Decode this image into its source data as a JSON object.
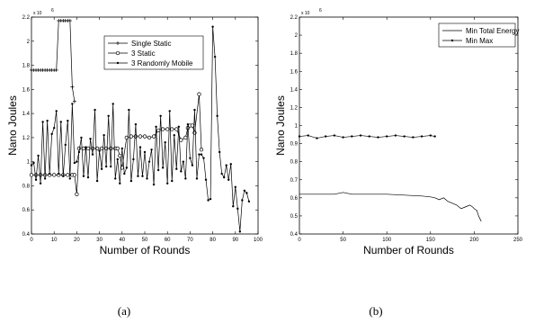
{
  "chart_data": [
    {
      "type": "line",
      "panel_label": "(a)",
      "xlabel": "Number of Rounds",
      "ylabel": "Nano Joules",
      "y_exponent_label": "x 10",
      "y_exponent": "6",
      "xlim": [
        0,
        100
      ],
      "ylim": [
        0.4,
        2.2
      ],
      "xticks": [
        0,
        10,
        20,
        30,
        40,
        50,
        60,
        70,
        80,
        90,
        100
      ],
      "yticks": [
        0.4,
        0.6,
        0.8,
        1,
        1.2,
        1.4,
        1.6,
        1.8,
        2,
        2.2
      ],
      "ytick_labels": [
        "0.4",
        "0.6",
        "0.8",
        "1",
        "1.2",
        "1.4",
        "1.6",
        "1.8",
        "2",
        "2.2"
      ],
      "legend_position": "top-right",
      "series": [
        {
          "name": "Single Static",
          "marker": "plus",
          "points": [
            [
              0,
              1.76
            ],
            [
              1,
              1.76
            ],
            [
              2,
              1.76
            ],
            [
              3,
              1.76
            ],
            [
              4,
              1.76
            ],
            [
              5,
              1.76
            ],
            [
              6,
              1.76
            ],
            [
              7,
              1.76
            ],
            [
              8,
              1.76
            ],
            [
              9,
              1.76
            ],
            [
              10,
              1.76
            ],
            [
              11,
              1.76
            ],
            [
              12,
              2.17
            ],
            [
              13,
              2.17
            ],
            [
              14,
              2.17
            ],
            [
              15,
              2.17
            ],
            [
              16,
              2.17
            ],
            [
              17,
              2.17
            ],
            [
              18,
              1.62
            ],
            [
              19,
              1.5
            ]
          ]
        },
        {
          "name": "3 Static",
          "marker": "circle",
          "points": [
            [
              0,
              0.89
            ],
            [
              2,
              0.89
            ],
            [
              4,
              0.89
            ],
            [
              6,
              0.89
            ],
            [
              8,
              0.89
            ],
            [
              10,
              0.89
            ],
            [
              12,
              0.89
            ],
            [
              14,
              0.89
            ],
            [
              16,
              0.89
            ],
            [
              18,
              0.89
            ],
            [
              19,
              0.89
            ],
            [
              20,
              0.73
            ],
            [
              21,
              1.11
            ],
            [
              23,
              1.11
            ],
            [
              25,
              1.11
            ],
            [
              27,
              1.11
            ],
            [
              29,
              1.11
            ],
            [
              31,
              1.11
            ],
            [
              33,
              1.11
            ],
            [
              35,
              1.11
            ],
            [
              37,
              1.11
            ],
            [
              38,
              1.11
            ],
            [
              39,
              1.05
            ],
            [
              40,
              0.95
            ],
            [
              42,
              1.2
            ],
            [
              44,
              1.21
            ],
            [
              46,
              1.21
            ],
            [
              48,
              1.21
            ],
            [
              50,
              1.21
            ],
            [
              52,
              1.2
            ],
            [
              54,
              1.21
            ],
            [
              56,
              1.26
            ],
            [
              58,
              1.27
            ],
            [
              60,
              1.27
            ],
            [
              62,
              1.27
            ],
            [
              64,
              1.27
            ],
            [
              66,
              1.18
            ],
            [
              68,
              1.2
            ],
            [
              69,
              1.28
            ],
            [
              70,
              1.3
            ],
            [
              71,
              1.3
            ],
            [
              72,
              1.24
            ],
            [
              74,
              1.56
            ],
            [
              75,
              1.1
            ]
          ]
        },
        {
          "name": "3 Randomly Mobile",
          "marker": "dot",
          "points": [
            [
              0,
              0.97
            ],
            [
              1,
              0.99
            ],
            [
              2,
              0.85
            ],
            [
              3,
              1.05
            ],
            [
              4,
              0.82
            ],
            [
              5,
              1.33
            ],
            [
              6,
              0.86
            ],
            [
              7,
              1.34
            ],
            [
              8,
              0.9
            ],
            [
              9,
              1.23
            ],
            [
              10,
              1.28
            ],
            [
              11,
              1.42
            ],
            [
              12,
              0.9
            ],
            [
              13,
              1.33
            ],
            [
              14,
              0.88
            ],
            [
              15,
              1.14
            ],
            [
              16,
              1.34
            ],
            [
              17,
              0.86
            ],
            [
              18,
              1.48
            ],
            [
              19,
              0.99
            ],
            [
              20,
              1
            ],
            [
              21,
              1.08
            ],
            [
              22,
              1.2
            ],
            [
              23,
              0.88
            ],
            [
              24,
              1.12
            ],
            [
              25,
              0.87
            ],
            [
              26,
              1.19
            ],
            [
              27,
              1.06
            ],
            [
              28,
              1.43
            ],
            [
              29,
              0.84
            ],
            [
              30,
              1.09
            ],
            [
              31,
              0.94
            ],
            [
              32,
              1.22
            ],
            [
              33,
              0.96
            ],
            [
              34,
              1.38
            ],
            [
              35,
              0.96
            ],
            [
              36,
              1.48
            ],
            [
              37,
              0.86
            ],
            [
              38,
              1.02
            ],
            [
              39,
              0.82
            ],
            [
              40,
              1.11
            ],
            [
              41,
              0.9
            ],
            [
              42,
              0.95
            ],
            [
              43,
              1.43
            ],
            [
              44,
              0.84
            ],
            [
              45,
              1.02
            ],
            [
              46,
              1.31
            ],
            [
              47,
              0.88
            ],
            [
              48,
              1.12
            ],
            [
              49,
              0.88
            ],
            [
              50,
              1.08
            ],
            [
              51,
              0.86
            ],
            [
              52,
              1.0
            ],
            [
              53,
              1.1
            ],
            [
              54,
              0.81
            ],
            [
              55,
              1.29
            ],
            [
              56,
              0.93
            ],
            [
              57,
              1.38
            ],
            [
              58,
              0.95
            ],
            [
              59,
              1.16
            ],
            [
              60,
              0.82
            ],
            [
              61,
              1.42
            ],
            [
              62,
              0.84
            ],
            [
              63,
              1.22
            ],
            [
              64,
              0.94
            ],
            [
              65,
              1.29
            ],
            [
              66,
              0.92
            ],
            [
              67,
              1.0
            ],
            [
              68,
              0.86
            ],
            [
              69,
              1.31
            ],
            [
              70,
              1.03
            ],
            [
              71,
              0.97
            ],
            [
              72,
              1.43
            ],
            [
              73,
              0.86
            ],
            [
              74,
              1.06
            ],
            [
              75,
              1.06
            ],
            [
              76,
              1.03
            ],
            [
              77,
              0.85
            ],
            [
              78,
              0.68
            ],
            [
              79,
              0.69
            ],
            [
              80,
              2.12
            ],
            [
              81,
              1.87
            ],
            [
              82,
              1.38
            ],
            [
              83,
              1.08
            ],
            [
              84,
              0.9
            ],
            [
              85,
              0.87
            ],
            [
              86,
              0.97
            ],
            [
              87,
              0.85
            ],
            [
              88,
              0.98
            ],
            [
              89,
              0.63
            ],
            [
              90,
              0.79
            ],
            [
              91,
              0.61
            ],
            [
              92,
              0.42
            ],
            [
              93,
              0.68
            ],
            [
              94,
              0.76
            ],
            [
              95,
              0.74
            ],
            [
              96,
              0.67
            ]
          ]
        }
      ]
    },
    {
      "type": "line",
      "panel_label": "(b)",
      "xlabel": "Number of Rounds",
      "ylabel": "Nano Joules",
      "y_exponent_label": "x 10",
      "y_exponent": "6",
      "xlim": [
        0,
        250
      ],
      "ylim": [
        0.4,
        2.2
      ],
      "xticks": [
        0,
        50,
        100,
        150,
        200,
        250
      ],
      "yticks": [
        0.4,
        0.5,
        0.6,
        0.7,
        0.8,
        0.9,
        1,
        1.2,
        1.4,
        1.6,
        1.8,
        2,
        2.2
      ],
      "ytick_labels": [
        "0.4",
        "0.5",
        "0.6",
        "0.7",
        "0.8",
        "0.9",
        "1",
        "1.2",
        "1.4",
        "1.6",
        "1.8",
        "2",
        "2.2"
      ],
      "y_tick_positions": [
        0.4,
        0.5,
        0.6,
        0.7,
        0.8,
        0.9,
        1.0,
        1.1,
        1.2,
        1.3,
        1.4,
        1.5,
        1.6
      ],
      "y_tick_pos_max": 1.6,
      "legend_position": "top-right",
      "series": [
        {
          "name": "Min Total Energy",
          "marker": "none",
          "points": [
            [
              0,
              0.62
            ],
            [
              20,
              0.62
            ],
            [
              40,
              0.62
            ],
            [
              50,
              0.63
            ],
            [
              55,
              0.625
            ],
            [
              60,
              0.62
            ],
            [
              80,
              0.62
            ],
            [
              100,
              0.62
            ],
            [
              120,
              0.615
            ],
            [
              140,
              0.61
            ],
            [
              150,
              0.605
            ],
            [
              155,
              0.6
            ],
            [
              160,
              0.59
            ],
            [
              165,
              0.6
            ],
            [
              170,
              0.58
            ],
            [
              175,
              0.57
            ],
            [
              180,
              0.56
            ],
            [
              185,
              0.54
            ],
            [
              190,
              0.55
            ],
            [
              195,
              0.56
            ],
            [
              198,
              0.55
            ],
            [
              200,
              0.54
            ],
            [
              203,
              0.53
            ],
            [
              205,
              0.5
            ],
            [
              207,
              0.48
            ],
            [
              208,
              0.47
            ]
          ]
        },
        {
          "name": "Min Max",
          "marker": "dot",
          "points": [
            [
              0,
              0.94
            ],
            [
              10,
              0.945
            ],
            [
              20,
              0.93
            ],
            [
              30,
              0.94
            ],
            [
              40,
              0.945
            ],
            [
              50,
              0.935
            ],
            [
              60,
              0.94
            ],
            [
              70,
              0.945
            ],
            [
              80,
              0.94
            ],
            [
              90,
              0.935
            ],
            [
              100,
              0.94
            ],
            [
              110,
              0.945
            ],
            [
              120,
              0.94
            ],
            [
              130,
              0.935
            ],
            [
              140,
              0.94
            ],
            [
              150,
              0.945
            ],
            [
              155,
              0.94
            ]
          ]
        }
      ]
    }
  ]
}
